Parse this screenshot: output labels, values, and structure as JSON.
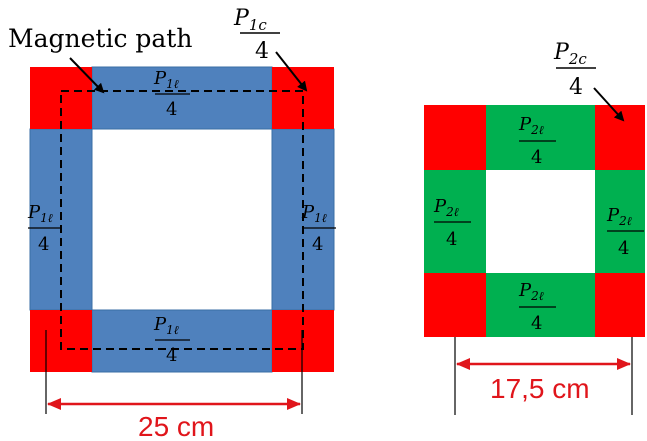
{
  "diagram": {
    "label_magnetic_path": "Magnetic path",
    "core1": {
      "corner_label": {
        "sym": "P",
        "sub": "1c",
        "den": "4"
      },
      "limb_label": {
        "sym": "P",
        "sub": "1ℓ",
        "den": "4"
      },
      "dimension": "25 cm"
    },
    "core2": {
      "corner_label": {
        "sym": "P",
        "sub": "2c",
        "den": "4"
      },
      "limb_label": {
        "sym": "P",
        "sub": "2ℓ",
        "den": "4"
      },
      "dimension": "17,5 cm"
    },
    "colors": {
      "corner": "#ff0000",
      "core1_limb": "#4f81bd",
      "core2_limb": "#00b050",
      "dimension": "#e0151b",
      "path": "#000000"
    }
  }
}
